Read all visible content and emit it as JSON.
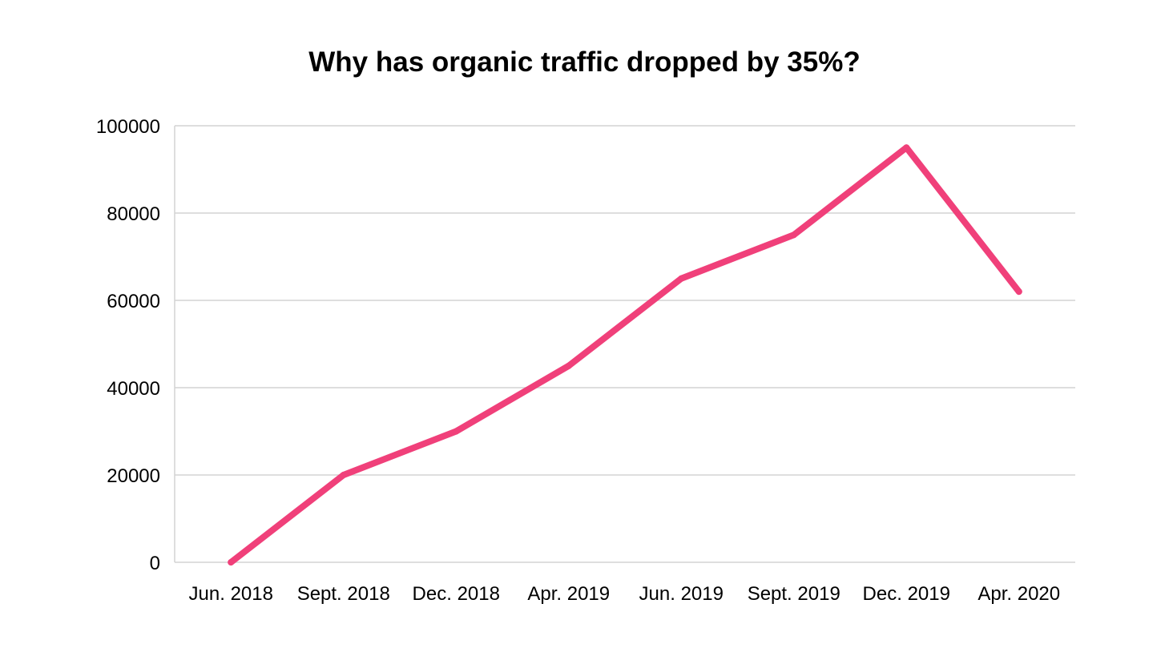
{
  "chart_data": {
    "type": "line",
    "title": "Why has organic traffic dropped by 35%?",
    "xlabel": "",
    "ylabel": "",
    "categories": [
      "Jun. 2018",
      "Sept. 2018",
      "Dec. 2018",
      "Apr. 2019",
      "Jun. 2019",
      "Sept. 2019",
      "Dec. 2019",
      "Apr. 2020"
    ],
    "series": [
      {
        "color": "#f0407a",
        "values": [
          0,
          20000,
          30000,
          45000,
          65000,
          75000,
          95000,
          62000
        ]
      }
    ],
    "ylim": [
      0,
      100000
    ],
    "yticks": [
      0,
      20000,
      40000,
      60000,
      80000,
      100000
    ],
    "ytick_labels": [
      "0",
      "20000",
      "40000",
      "60000",
      "80000",
      "100000"
    ],
    "grid": true,
    "legend": "none"
  }
}
